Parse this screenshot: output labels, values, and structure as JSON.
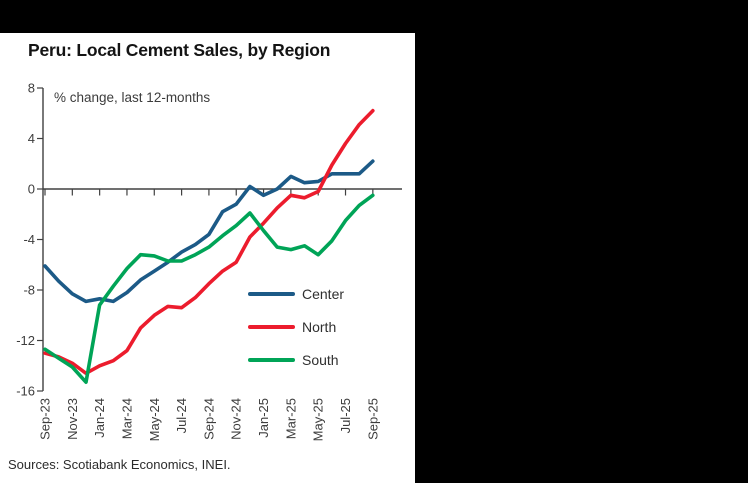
{
  "chart": {
    "title": "Peru: Local Cement Sales, by Region",
    "note": "% change, last 12-months",
    "source": "Sources: Scotiabank Economics, INEI."
  },
  "chart_data": {
    "type": "line",
    "x": [
      "Sep-23",
      "Oct-23",
      "Nov-23",
      "Dec-23",
      "Jan-24",
      "Feb-24",
      "Mar-24",
      "Apr-24",
      "May-24",
      "Jun-24",
      "Jul-24",
      "Aug-24",
      "Sep-24",
      "Oct-24",
      "Nov-24",
      "Dec-24",
      "Jan-25",
      "Feb-25",
      "Mar-25",
      "Apr-25",
      "May-25",
      "Jun-25",
      "Jul-25",
      "Aug-25",
      "Sep-25"
    ],
    "x_tick_labels": [
      "Sep-23",
      "Nov-23",
      "Jan-24",
      "Mar-24",
      "May-24",
      "Jul-24",
      "Sep-24",
      "Nov-24",
      "Jan-25",
      "Mar-25",
      "May-25",
      "Jul-25",
      "Sep-25"
    ],
    "y_ticks": [
      8,
      4,
      0,
      -4,
      -8,
      -12,
      -16
    ],
    "ylim": [
      -16,
      8
    ],
    "grid": false,
    "legend_position": "inside-right-lower",
    "series": [
      {
        "name": "Center",
        "color": "#1C5A87",
        "values": [
          -6.1,
          -7.3,
          -8.3,
          -8.9,
          -8.7,
          -8.9,
          -8.2,
          -7.2,
          -6.5,
          -5.8,
          -5.0,
          -4.4,
          -3.6,
          -1.8,
          -1.2,
          0.2,
          -0.5,
          0.0,
          1.0,
          0.5,
          0.6,
          1.2,
          1.2,
          1.2,
          2.2
        ]
      },
      {
        "name": "North",
        "color": "#EC1C2D",
        "values": [
          -13.0,
          -13.3,
          -13.8,
          -14.6,
          -14.0,
          -13.6,
          -12.8,
          -11.0,
          -10.0,
          -9.3,
          -9.4,
          -8.6,
          -7.5,
          -6.5,
          -5.8,
          -3.8,
          -2.7,
          -1.5,
          -0.5,
          -0.7,
          -0.2,
          1.9,
          3.6,
          5.1,
          6.2
        ]
      },
      {
        "name": "South",
        "color": "#00A457",
        "values": [
          -12.7,
          -13.4,
          -14.1,
          -15.3,
          -9.2,
          -7.7,
          -6.3,
          -5.2,
          -5.3,
          -5.7,
          -5.7,
          -5.2,
          -4.6,
          -3.7,
          -2.9,
          -1.9,
          -3.3,
          -4.6,
          -4.8,
          -4.5,
          -5.2,
          -4.1,
          -2.5,
          -1.3,
          -0.5
        ]
      }
    ],
    "axis_color": "#404040",
    "tick_label_color": "#3d3d3d"
  }
}
